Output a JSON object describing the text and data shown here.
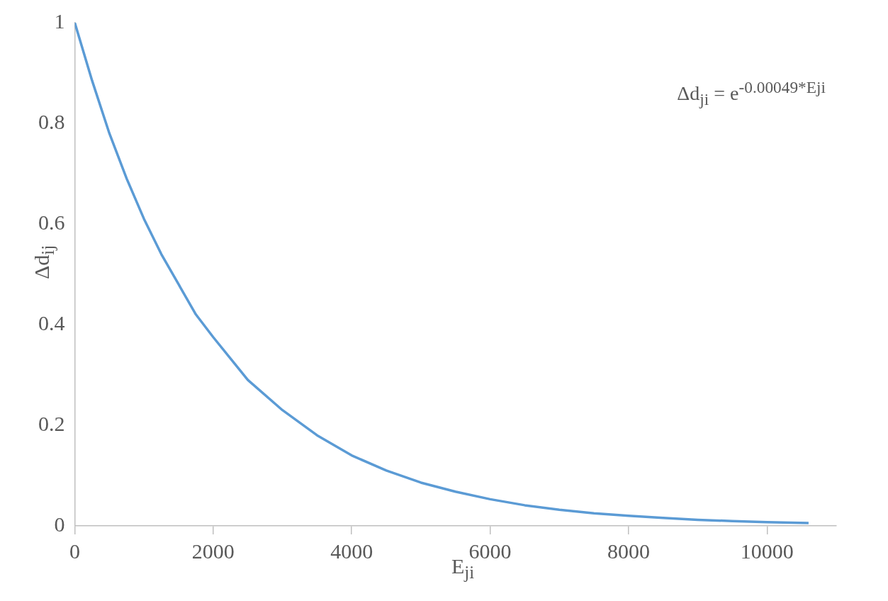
{
  "chart_data": {
    "type": "line",
    "xlabel": "E$_{ji}$",
    "ylabel": "Δd$_{ij}$",
    "annotations": [
      "Δd$_{ji}$ = e$^{-0.00049*Eji}$"
    ],
    "x": [
      0,
      250,
      500,
      750,
      1000,
      1250,
      1500,
      1750,
      2000,
      2500,
      3000,
      3500,
      4000,
      4500,
      5000,
      5500,
      6000,
      6500,
      7000,
      7500,
      8000,
      8500,
      9000,
      9500,
      10000,
      10600
    ],
    "series": [
      {
        "color": "#5b9bd5",
        "values": [
          1,
          0.885,
          0.78,
          0.69,
          0.61,
          0.54,
          0.48,
          0.42,
          0.375,
          0.29,
          0.23,
          0.18,
          0.14,
          0.11,
          0.086,
          0.068,
          0.053,
          0.041,
          0.032,
          0.025,
          0.02,
          0.016,
          0.012,
          0.0095,
          0.0074,
          0.0055
        ]
      }
    ],
    "xlim": [
      0,
      11000
    ],
    "xticks": [
      0,
      2000,
      4000,
      6000,
      8000,
      10000
    ],
    "ylim": [
      0,
      1
    ],
    "yticks": [
      0,
      0.2,
      0.4,
      0.6,
      0.8,
      1
    ],
    "grid": false,
    "legend": false,
    "marker": "none",
    "line_style": "solid"
  }
}
